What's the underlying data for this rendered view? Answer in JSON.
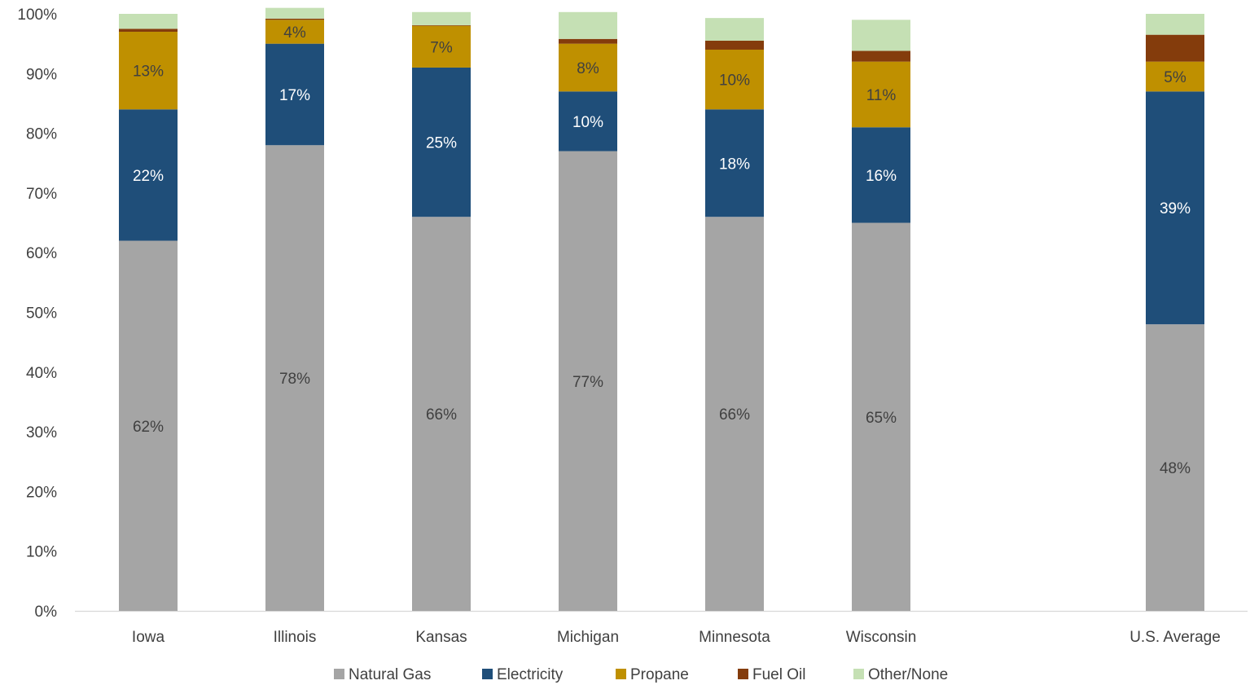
{
  "chart_data": {
    "type": "bar",
    "stacked": true,
    "categories": [
      "Iowa",
      "Illinois",
      "Kansas",
      "Michigan",
      "Minnesota",
      "Wisconsin",
      "U.S. Average"
    ],
    "gap_before_last_category": true,
    "ylim": [
      0,
      100
    ],
    "yticks": [
      "0%",
      "10%",
      "20%",
      "30%",
      "40%",
      "50%",
      "60%",
      "70%",
      "80%",
      "90%",
      "100%"
    ],
    "grid": false,
    "legend_position": "bottom",
    "series": [
      {
        "name": "Natural Gas",
        "color": "#a5a5a5",
        "label_color": "#404040",
        "values": [
          62,
          78,
          66,
          77,
          66,
          65,
          48
        ],
        "labels": [
          "62%",
          "78%",
          "66%",
          "77%",
          "66%",
          "65%",
          "48%"
        ]
      },
      {
        "name": "Electricity",
        "color": "#1f4e79",
        "label_color": "#ffffff",
        "values": [
          22,
          17,
          25,
          10,
          18,
          16,
          39
        ],
        "labels": [
          "22%",
          "17%",
          "25%",
          "10%",
          "18%",
          "16%",
          "39%"
        ]
      },
      {
        "name": "Propane",
        "color": "#bf9000",
        "label_color": "#404040",
        "values": [
          13,
          4,
          7,
          8,
          10,
          11,
          5
        ],
        "labels": [
          "13%",
          "4%",
          "7%",
          "8%",
          "10%",
          "11%",
          "5%"
        ]
      },
      {
        "name": "Fuel Oil",
        "color": "#843c0c",
        "label_color": "#ffffff",
        "values": [
          0.5,
          0.2,
          0.1,
          0.8,
          1.5,
          1.8,
          4.5
        ],
        "labels": [
          "",
          "",
          "",
          "",
          "",
          "",
          ""
        ]
      },
      {
        "name": "Other/None",
        "color": "#c5e0b4",
        "label_color": "#404040",
        "values": [
          2.5,
          1.8,
          2.2,
          4.5,
          3.8,
          5.2,
          3.5
        ],
        "labels": [
          "",
          "",
          "",
          "",
          "",
          "",
          ""
        ]
      }
    ]
  }
}
